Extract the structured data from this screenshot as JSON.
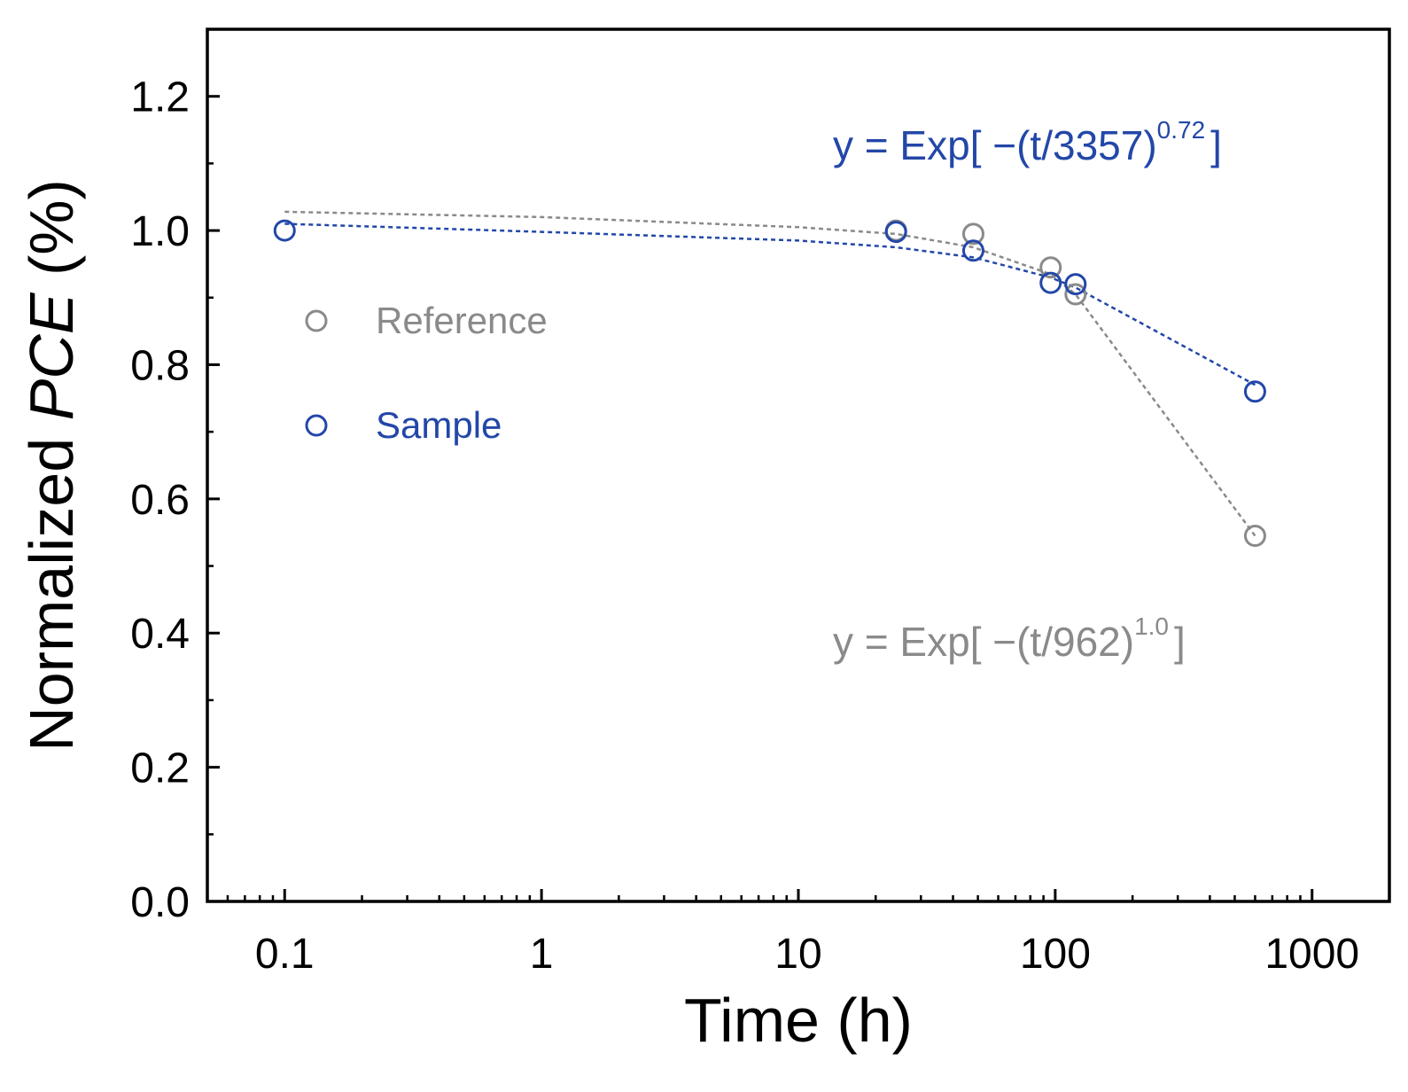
{
  "chart_data": {
    "type": "scatter",
    "title": "",
    "xlabel": "Time (h)",
    "ylabel_prefix": "Normalized ",
    "ylabel_italic": "PCE",
    "ylabel_suffix": " (%)",
    "xscale": "log",
    "xlim": [
      0.05,
      2000
    ],
    "ylim": [
      0.0,
      1.3
    ],
    "grid": false,
    "legend_position": "upper-left",
    "x_ticks": [
      {
        "value": 0.1,
        "label": "0.1"
      },
      {
        "value": 1,
        "label": "1"
      },
      {
        "value": 10,
        "label": "10"
      },
      {
        "value": 100,
        "label": "100"
      },
      {
        "value": 1000,
        "label": "1000"
      }
    ],
    "y_ticks": [
      {
        "value": 0.0,
        "label": "0.0"
      },
      {
        "value": 0.2,
        "label": "0.2"
      },
      {
        "value": 0.4,
        "label": "0.4"
      },
      {
        "value": 0.6,
        "label": "0.6"
      },
      {
        "value": 0.8,
        "label": "0.8"
      },
      {
        "value": 1.0,
        "label": "1.0"
      },
      {
        "value": 1.2,
        "label": "1.2"
      }
    ],
    "series": [
      {
        "name": "Reference",
        "color": "#8a8a8a",
        "marker": "open-circle",
        "x": [
          24,
          48,
          96,
          120,
          600
        ],
        "y": [
          1.0,
          0.995,
          0.945,
          0.905,
          0.545
        ],
        "fit_x": [
          0.1,
          1,
          10,
          24,
          48,
          96,
          120,
          600
        ],
        "fit_y": [
          1.028,
          1.02,
          1.005,
          0.995,
          0.975,
          0.935,
          0.905,
          0.545
        ],
        "equation": {
          "main": "y = Exp[ −(t/962)",
          "sup": "1.0",
          "end": "]",
          "color": "#8a8a8a"
        }
      },
      {
        "name": "Sample",
        "color": "#2347a8",
        "marker": "open-circle",
        "x": [
          0.1,
          24,
          48,
          96,
          120,
          600
        ],
        "y": [
          1.0,
          0.998,
          0.97,
          0.922,
          0.92,
          0.76
        ],
        "fit_x": [
          0.1,
          1,
          10,
          24,
          48,
          96,
          120,
          600
        ],
        "fit_y": [
          1.01,
          0.998,
          0.985,
          0.975,
          0.96,
          0.93,
          0.915,
          0.77
        ],
        "equation": {
          "main": "y = Exp[ −(t/3357)",
          "sup": "0.72",
          "end": "]",
          "color": "#2347a8"
        }
      }
    ]
  }
}
